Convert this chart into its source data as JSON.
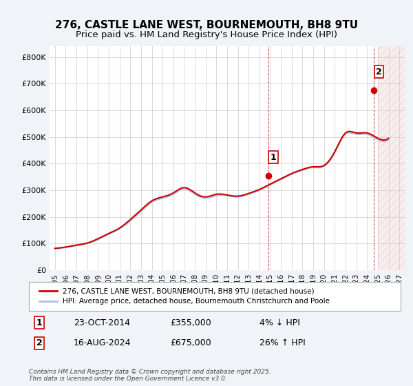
{
  "title_line1": "276, CASTLE LANE WEST, BOURNEMOUTH, BH8 9TU",
  "title_line2": "Price paid vs. HM Land Registry's House Price Index (HPI)",
  "ylabel_ticks": [
    "£0",
    "£100K",
    "£200K",
    "£300K",
    "£400K",
    "£500K",
    "£600K",
    "£700K",
    "£800K"
  ],
  "ytick_values": [
    0,
    100000,
    200000,
    300000,
    400000,
    500000,
    600000,
    700000,
    800000
  ],
  "ylim": [
    0,
    840000
  ],
  "xlim_start": 1994.5,
  "xlim_end": 2027.5,
  "xtick_years": [
    1995,
    1996,
    1997,
    1998,
    1999,
    2000,
    2001,
    2002,
    2003,
    2004,
    2005,
    2006,
    2007,
    2008,
    2009,
    2010,
    2011,
    2012,
    2013,
    2014,
    2015,
    2016,
    2017,
    2018,
    2019,
    2020,
    2021,
    2022,
    2023,
    2024,
    2025,
    2026,
    2027
  ],
  "hpi_color": "#aac4e0",
  "price_color": "#cc0000",
  "marker_color": "#cc0000",
  "sale1_x": 2014.81,
  "sale1_y": 355000,
  "sale2_x": 2024.62,
  "sale2_y": 675000,
  "vline_color": "#cc0000",
  "hatch_color": "#f0c0c0",
  "legend_label1": "276, CASTLE LANE WEST, BOURNEMOUTH, BH8 9TU (detached house)",
  "legend_label2": "HPI: Average price, detached house, Bournemouth Christchurch and Poole",
  "annotation1_label": "1",
  "annotation2_label": "2",
  "note1_box": "1",
  "note1_date": "23-OCT-2014",
  "note1_price": "£355,000",
  "note1_hpi": "4% ↓ HPI",
  "note2_box": "2",
  "note2_date": "16-AUG-2024",
  "note2_price": "£675,000",
  "note2_hpi": "26% ↑ HPI",
  "footer": "Contains HM Land Registry data © Crown copyright and database right 2025.\nThis data is licensed under the Open Government Licence v3.0.",
  "bg_color": "#f0f4f8",
  "plot_bg_color": "#ffffff",
  "grid_color": "#cccccc"
}
